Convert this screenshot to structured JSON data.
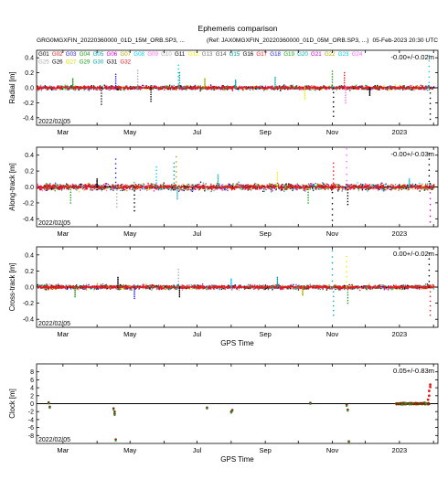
{
  "header": {
    "title": "Ephemeris comparison",
    "left": "GRG0MGXFIN_20220360000_01D_15M_ORB.SP3, ...",
    "ref": "(Ref: JAX0MGXFIN_20220360000_01D_05M_ORB.SP3, ...)",
    "timestamp": "05-Feb-2023 20:30 UTC"
  },
  "legend": {
    "entries": [
      {
        "name": "G01",
        "color": "#000000"
      },
      {
        "name": "G02",
        "color": "#e41a1c"
      },
      {
        "name": "G03",
        "color": "#2222dd"
      },
      {
        "name": "G04",
        "color": "#1aa01a"
      },
      {
        "name": "G05",
        "color": "#00aaaa"
      },
      {
        "name": "G06",
        "color": "#cc00cc"
      },
      {
        "name": "G07",
        "color": "#aaaa00"
      },
      {
        "name": "G08",
        "color": "#00ccee"
      },
      {
        "name": "G09",
        "color": "#ff66ff"
      },
      {
        "name": "G10",
        "color": "#aaaaaa"
      },
      {
        "name": "G11",
        "color": "#000000"
      },
      {
        "name": "G12",
        "color": "#eeee00"
      },
      {
        "name": "G13",
        "color": "#777777"
      },
      {
        "name": "G14",
        "color": "#555555"
      },
      {
        "name": "G15",
        "color": "#009999"
      },
      {
        "name": "G16",
        "color": "#000000"
      },
      {
        "name": "G17",
        "color": "#e41a1c"
      },
      {
        "name": "G18",
        "color": "#2222dd"
      },
      {
        "name": "G19",
        "color": "#1aa01a"
      },
      {
        "name": "G20",
        "color": "#00aaaa"
      },
      {
        "name": "G21",
        "color": "#cc00cc"
      },
      {
        "name": "G22",
        "color": "#aaaa00"
      },
      {
        "name": "G23",
        "color": "#00ccee"
      },
      {
        "name": "G24",
        "color": "#ff66ff"
      },
      {
        "name": "G25",
        "color": "#aaaaaa"
      },
      {
        "name": "G26",
        "color": "#000000"
      },
      {
        "name": "G27",
        "color": "#dddd00"
      },
      {
        "name": "G29",
        "color": "#1aa01a"
      },
      {
        "name": "G30",
        "color": "#00aaaa"
      },
      {
        "name": "G31",
        "color": "#000000"
      },
      {
        "name": "G32",
        "color": "#e41a1c"
      }
    ]
  },
  "chart_data": [
    {
      "type": "scatter",
      "ylabel": "Radial [m]",
      "ylim": [
        -0.5,
        0.5
      ],
      "yticks": [
        "0.4",
        "0.2",
        "0.0",
        "-0.2",
        "-0.4"
      ],
      "ytick_values": [
        0.4,
        0.2,
        0.0,
        -0.2,
        -0.4
      ],
      "xticks": [
        "Mar",
        "May",
        "Jul",
        "Sep",
        "Nov",
        "2023"
      ],
      "start_label": "2022/02/05",
      "stats": "-0.00+/-0.02m",
      "spread": 0.02,
      "outliers": [
        {
          "date": "2022-03-10",
          "value": 0.12
        },
        {
          "date": "2022-04-05",
          "value": -0.22
        },
        {
          "date": "2022-04-18",
          "value": 0.18
        },
        {
          "date": "2022-05-08",
          "value": 0.23
        },
        {
          "date": "2022-05-20",
          "value": -0.18
        },
        {
          "date": "2022-06-14",
          "value": 0.3
        },
        {
          "date": "2022-06-15",
          "value": 0.2
        },
        {
          "date": "2022-07-08",
          "value": 0.12
        },
        {
          "date": "2022-08-05",
          "value": 0.1
        },
        {
          "date": "2022-09-10",
          "value": 0.14
        },
        {
          "date": "2022-10-07",
          "value": -0.15
        },
        {
          "date": "2022-11-01",
          "value": 0.22
        },
        {
          "date": "2022-11-02",
          "value": -0.38
        },
        {
          "date": "2022-11-12",
          "value": 0.2
        },
        {
          "date": "2022-11-13",
          "value": -0.2
        },
        {
          "date": "2022-12-05",
          "value": -0.1
        },
        {
          "date": "2023-01-28",
          "value": 0.43
        },
        {
          "date": "2023-01-29",
          "value": -0.42
        }
      ]
    },
    {
      "type": "scatter",
      "ylabel": "Along-track [m]",
      "ylim": [
        -0.5,
        0.5
      ],
      "yticks": [
        "0.4",
        "0.2",
        "0.0",
        "-0.2",
        "-0.4"
      ],
      "ytick_values": [
        0.4,
        0.2,
        0.0,
        -0.2,
        -0.4
      ],
      "xticks": [
        "Mar",
        "May",
        "Jul",
        "Sep",
        "Nov",
        "2023"
      ],
      "start_label": "2022/02/05",
      "stats": "-0.00+/-0.03m",
      "spread": 0.03,
      "outliers": [
        {
          "date": "2022-03-08",
          "value": -0.2
        },
        {
          "date": "2022-04-01",
          "value": 0.1
        },
        {
          "date": "2022-04-18",
          "value": 0.35
        },
        {
          "date": "2022-04-19",
          "value": -0.25
        },
        {
          "date": "2022-05-05",
          "value": -0.3
        },
        {
          "date": "2022-05-25",
          "value": 0.25
        },
        {
          "date": "2022-06-10",
          "value": 0.3
        },
        {
          "date": "2022-06-12",
          "value": 0.38
        },
        {
          "date": "2022-06-13",
          "value": -0.15
        },
        {
          "date": "2022-07-20",
          "value": 0.15
        },
        {
          "date": "2022-09-12",
          "value": 0.18
        },
        {
          "date": "2022-10-10",
          "value": -0.2
        },
        {
          "date": "2022-11-01",
          "value": -0.42
        },
        {
          "date": "2022-11-02",
          "value": 0.3
        },
        {
          "date": "2022-11-14",
          "value": 0.48
        },
        {
          "date": "2022-11-15",
          "value": -0.22
        },
        {
          "date": "2023-01-10",
          "value": 0.1
        },
        {
          "date": "2023-01-28",
          "value": 0.42
        },
        {
          "date": "2023-01-29",
          "value": -0.44
        }
      ]
    },
    {
      "type": "scatter",
      "ylabel": "Cross-track [m]",
      "xlabel": "GPS Time",
      "ylim": [
        -0.5,
        0.5
      ],
      "yticks": [
        "0.4",
        "0.2",
        "0.0",
        "-0.2",
        "-0.4"
      ],
      "ytick_values": [
        0.4,
        0.2,
        0.0,
        -0.2,
        -0.4
      ],
      "xticks": [
        "Mar",
        "May",
        "Jul",
        "Sep",
        "Nov",
        "2023"
      ],
      "start_label": "2022/02/05",
      "stats": "0.00+/-0.02m",
      "spread": 0.02,
      "outliers": [
        {
          "date": "2022-03-12",
          "value": -0.12
        },
        {
          "date": "2022-04-20",
          "value": 0.12
        },
        {
          "date": "2022-05-05",
          "value": -0.14
        },
        {
          "date": "2022-06-14",
          "value": 0.22
        },
        {
          "date": "2022-06-15",
          "value": -0.12
        },
        {
          "date": "2022-08-01",
          "value": 0.1
        },
        {
          "date": "2022-09-12",
          "value": 0.12
        },
        {
          "date": "2022-10-05",
          "value": -0.1
        },
        {
          "date": "2022-11-01",
          "value": 0.45
        },
        {
          "date": "2022-11-02",
          "value": -0.35
        },
        {
          "date": "2022-11-14",
          "value": 0.38
        },
        {
          "date": "2022-11-15",
          "value": -0.2
        },
        {
          "date": "2023-01-28",
          "value": 0.42
        },
        {
          "date": "2023-01-29",
          "value": -0.35
        }
      ]
    },
    {
      "type": "scatter",
      "ylabel": "Clock [m]",
      "xlabel": "GPS Time",
      "ylim": [
        -10,
        10
      ],
      "yticks": [
        "8",
        "6",
        "4",
        "2",
        "0",
        "-2",
        "-4",
        "-6",
        "-8"
      ],
      "ytick_values": [
        8,
        6,
        4,
        2,
        0,
        -2,
        -4,
        -6,
        -8
      ],
      "xticks": [
        "Mar",
        "May",
        "Jul",
        "Sep",
        "Nov",
        "2023"
      ],
      "start_label": "2022/02/05",
      "stats": "0.05+/-0.83m",
      "points": [
        {
          "date": "2022-02-16",
          "value": 0.3
        },
        {
          "date": "2022-02-17",
          "value": -0.8
        },
        {
          "date": "2022-04-16",
          "value": -1.2
        },
        {
          "date": "2022-04-17",
          "value": -2.0
        },
        {
          "date": "2022-04-17",
          "value": -2.6
        },
        {
          "date": "2022-04-18",
          "value": -9.0
        },
        {
          "date": "2022-07-10",
          "value": -1.0
        },
        {
          "date": "2022-08-01",
          "value": -2.0
        },
        {
          "date": "2022-08-02",
          "value": -1.6
        },
        {
          "date": "2022-10-12",
          "value": 0.2
        },
        {
          "date": "2022-11-14",
          "value": -0.3
        },
        {
          "date": "2022-11-15",
          "value": -1.5
        },
        {
          "date": "2022-11-16",
          "value": -9.5
        }
      ],
      "dense_segment": {
        "start": "2022-12-29",
        "end": "2023-01-28",
        "value": 0.0
      },
      "rise": [
        {
          "date": "2023-01-27",
          "value": 1.0
        },
        {
          "date": "2023-01-28",
          "value": 2.0
        },
        {
          "date": "2023-01-28",
          "value": 3.2
        },
        {
          "date": "2023-01-29",
          "value": 4.2
        },
        {
          "date": "2023-01-29",
          "value": 4.8
        }
      ]
    }
  ]
}
